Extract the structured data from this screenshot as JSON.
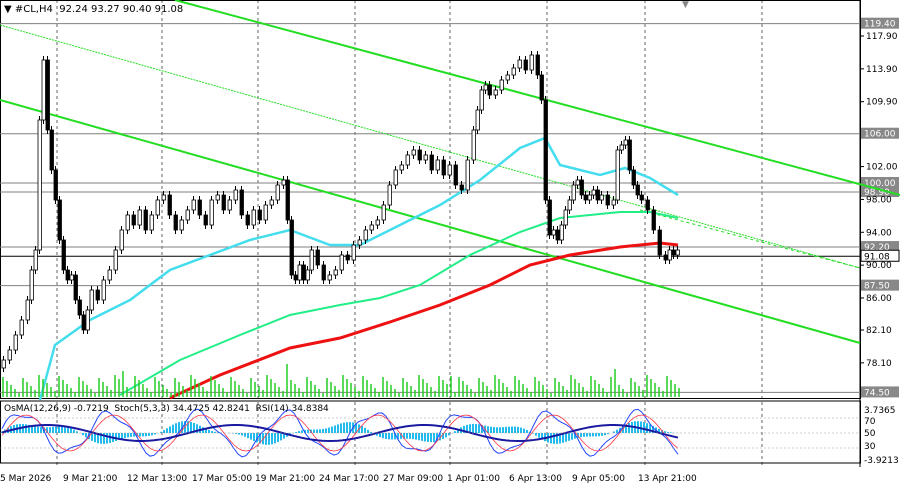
{
  "header": {
    "symbol": "▼ #CL,H4",
    "ohlc": "92.24 93.27 90.40 91.08"
  },
  "indicator_header": "OsMA(12,26,9) -0.7219  Stoch(5,3,3) 34.4725 42.8241  RSI(14) 34.8384",
  "price_scale": [
    "117.90",
    "113.90",
    "109.90",
    "102.00",
    "98.00",
    "94.00",
    "90.00",
    "86.00",
    "82.10",
    "78.10"
  ],
  "price_levels": [
    {
      "value": "119.40",
      "color": "#808080"
    },
    {
      "value": "106.00",
      "color": "#808080"
    },
    {
      "value": "100.00",
      "color": "#808080"
    },
    {
      "value": "98.90",
      "color": "#808080"
    },
    {
      "value": "92.20",
      "color": "#808080"
    },
    {
      "value": "91.08",
      "color": "#000000"
    },
    {
      "value": "87.50",
      "color": "#808080"
    },
    {
      "value": "74.50",
      "color": "#808080"
    }
  ],
  "indicator_scale": [
    "3.7365",
    "70",
    "50",
    "30",
    "-3.9213"
  ],
  "time_labels": [
    "5 Mar 2026",
    "9 Mar 21:00",
    "12 Mar 13:00",
    "17 Mar 05:00",
    "19 Mar 21:00",
    "24 Mar 17:00",
    "27 Mar 09:00",
    "1 Apr 01:00",
    "6 Apr 13:00",
    "9 Apr 05:00",
    "13 Apr 21:00"
  ],
  "colors": {
    "channel": "#22dd22",
    "ma_fast": "#44dded",
    "ma_mid": "#22ee88",
    "ma_slow": "#ee1111",
    "candle": "#000000",
    "volume": "#22cc22"
  }
}
